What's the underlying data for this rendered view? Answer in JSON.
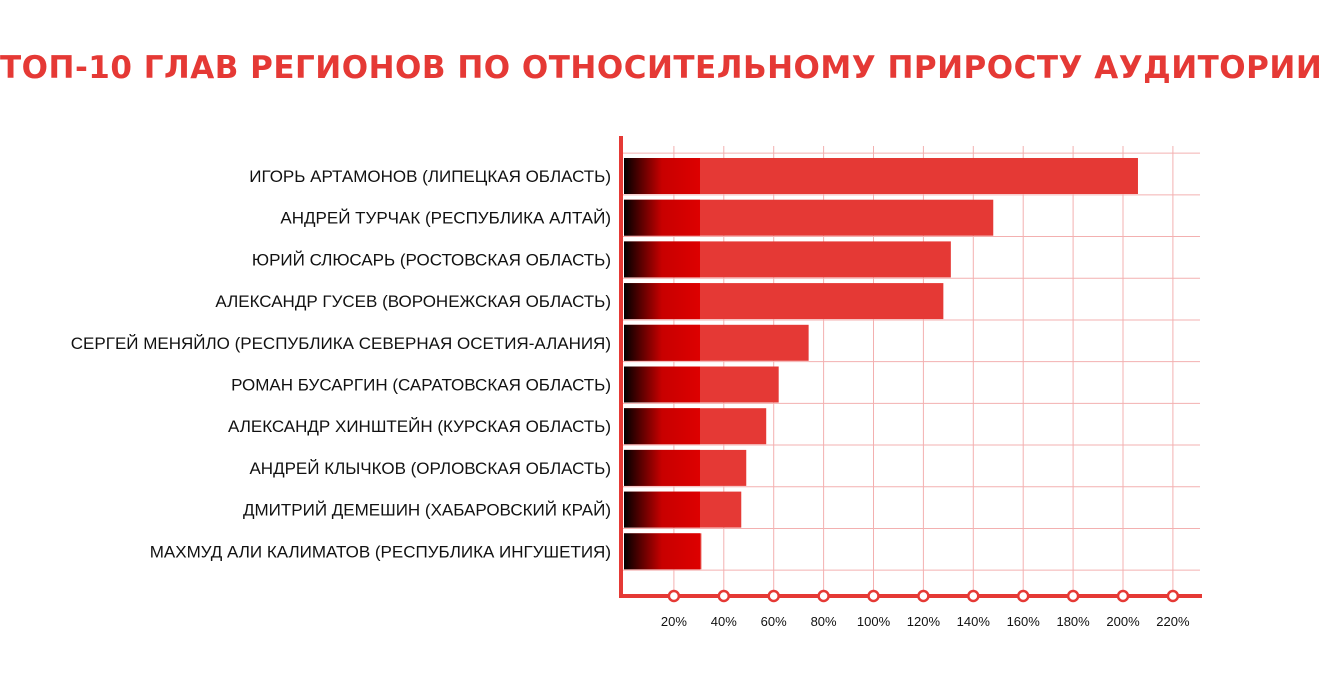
{
  "title": "ТОП-10 ГЛАВ РЕГИОНОВ ПО ОТНОСИТЕЛЬНОМУ ПРИРОСТУ АУДИТОРИИ",
  "colors": {
    "title": "#e53935",
    "bar": "#e53935",
    "bar_dark": "#cc0000",
    "grid": "#f3b0b0",
    "axis": "#e53935"
  },
  "chart_data": {
    "type": "bar",
    "orientation": "horizontal",
    "title": "ТОП-10 ГЛАВ РЕГИОНОВ ПО ОТНОСИТЕЛЬНОМУ ПРИРОСТУ АУДИТОРИИ",
    "categories": [
      "ИГОРЬ АРТАМОНОВ (ЛИПЕЦКАЯ ОБЛАСТЬ)",
      "АНДРЕЙ ТУРЧАК (РЕСПУБЛИКА АЛТАЙ)",
      "ЮРИЙ СЛЮСАРЬ (РОСТОВСКАЯ ОБЛАСТЬ)",
      "АЛЕКСАНДР ГУСЕВ (ВОРОНЕЖСКАЯ ОБЛАСТЬ)",
      "СЕРГЕЙ МЕНЯЙЛО (РЕСПУБЛИКА СЕВЕРНАЯ ОСЕТИЯ-АЛАНИЯ)",
      "РОМАН БУСАРГИН (САРАТОВСКАЯ ОБЛАСТЬ)",
      "АЛЕКСАНДР ХИНШТЕЙН (КУРСКАЯ ОБЛАСТЬ)",
      "АНДРЕЙ КЛЫЧКОВ (ОРЛОВСКАЯ ОБЛАСТЬ)",
      "ДМИТРИЙ ДЕМЕШИН (ХАБАРОВСКИЙ КРАЙ)",
      "МАХМУД АЛИ КАЛИМАТОВ (РЕСПУБЛИКА ИНГУШЕТИЯ)"
    ],
    "values": [
      206,
      148,
      131,
      128,
      74,
      62,
      57,
      49,
      47,
      31
    ],
    "xlim": [
      0,
      232
    ],
    "xticks": [
      20,
      40,
      60,
      80,
      100,
      120,
      140,
      160,
      180,
      200,
      220
    ],
    "xtick_labels": [
      "20%",
      "40%",
      "60%",
      "80%",
      "100%",
      "120%",
      "140%",
      "160%",
      "180%",
      "200%",
      "220%"
    ],
    "grid": true,
    "legend": "none"
  }
}
